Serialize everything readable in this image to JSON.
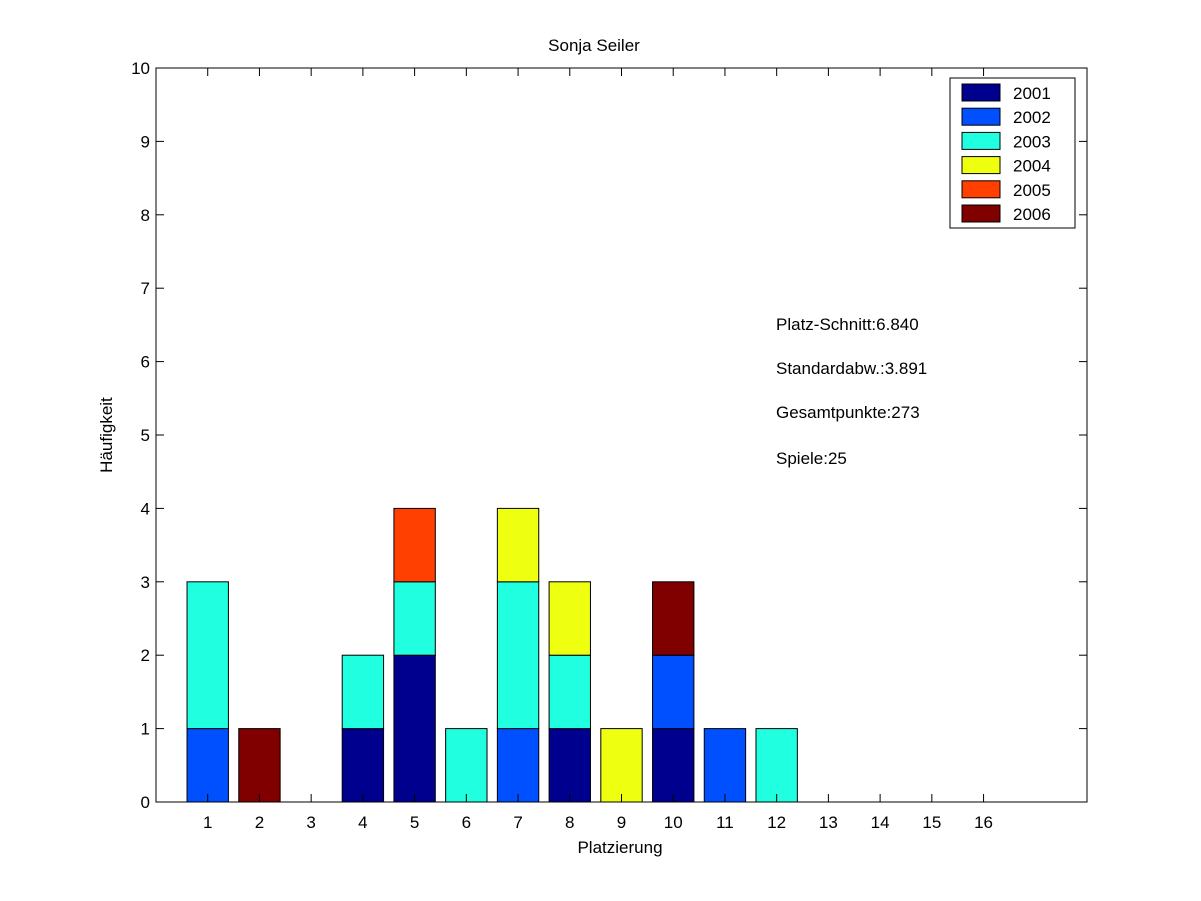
{
  "chart_data": {
    "type": "bar",
    "stacked": true,
    "title": "Sonja Seiler",
    "xlabel": "Platzierung",
    "ylabel": "Häufigkeit",
    "ylim": [
      0,
      10
    ],
    "xlim": [
      0,
      18
    ],
    "grid": false,
    "legend_position": "top-right",
    "yticks": [
      "0",
      "1",
      "2",
      "3",
      "4",
      "5",
      "6",
      "7",
      "8",
      "9",
      "10"
    ],
    "categories": [
      "1",
      "2",
      "3",
      "4",
      "5",
      "6",
      "7",
      "8",
      "9",
      "10",
      "11",
      "12",
      "13",
      "14",
      "15",
      "16"
    ],
    "series": [
      {
        "name": "2001",
        "color": "#00008F",
        "values": [
          0,
          0,
          0,
          1,
          2,
          0,
          0,
          1,
          0,
          1,
          0,
          0,
          0,
          0,
          0,
          0
        ]
      },
      {
        "name": "2002",
        "color": "#0050FF",
        "values": [
          1,
          0,
          0,
          0,
          0,
          0,
          1,
          0,
          0,
          1,
          1,
          0,
          0,
          0,
          0,
          0
        ]
      },
      {
        "name": "2003",
        "color": "#20FFDF",
        "values": [
          2,
          0,
          0,
          1,
          1,
          1,
          2,
          1,
          0,
          0,
          0,
          1,
          0,
          0,
          0,
          0
        ]
      },
      {
        "name": "2004",
        "color": "#EFFF10",
        "values": [
          0,
          0,
          0,
          0,
          0,
          0,
          1,
          1,
          1,
          0,
          0,
          0,
          0,
          0,
          0,
          0
        ]
      },
      {
        "name": "2005",
        "color": "#FF4000",
        "values": [
          0,
          0,
          0,
          0,
          1,
          0,
          0,
          0,
          0,
          0,
          0,
          0,
          0,
          0,
          0,
          0
        ]
      },
      {
        "name": "2006",
        "color": "#800000",
        "values": [
          0,
          1,
          0,
          0,
          0,
          0,
          0,
          0,
          0,
          1,
          0,
          0,
          0,
          0,
          0,
          0
        ]
      }
    ],
    "annotations": [
      "Platz-Schnitt:6.840",
      "Standardabw.:3.891",
      "Gesamtpunkte:273",
      "Spiele:25"
    ]
  }
}
